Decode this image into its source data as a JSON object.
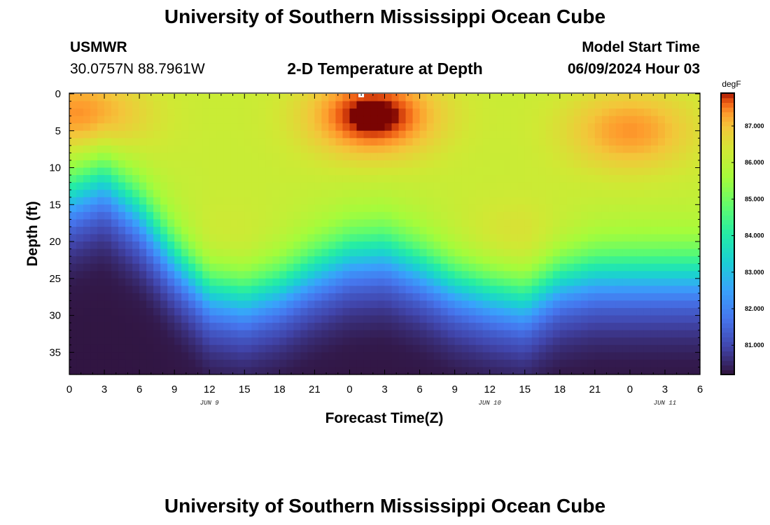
{
  "header": {
    "title": "University of Southern Mississippi Ocean Cube",
    "station": "USMWR",
    "coords": "30.0757N  88.7961W",
    "subtitle": "2-D Temperature at Depth",
    "model_label": "Model Start Time",
    "model_time": "06/09/2024 Hour 03"
  },
  "footer": {
    "title": "University of Southern Mississippi Ocean Cube"
  },
  "chart_data": {
    "type": "heatmap",
    "title": "2-D Temperature at Depth",
    "xlabel": "Forecast Time(Z)",
    "ylabel": "Depth (ft)",
    "x_range": [
      0,
      54
    ],
    "y_range": [
      0,
      38
    ],
    "x_ticks": [
      0,
      3,
      6,
      9,
      12,
      15,
      18,
      21,
      24,
      27,
      30,
      33,
      36,
      39,
      42,
      45,
      48,
      51,
      54
    ],
    "x_tick_labels": [
      "0",
      "3",
      "6",
      "9",
      "12",
      "15",
      "18",
      "21",
      "0",
      "3",
      "6",
      "9",
      "12",
      "15",
      "18",
      "21",
      "0",
      "3",
      "6"
    ],
    "y_ticks": [
      0,
      5,
      10,
      15,
      20,
      25,
      30,
      35
    ],
    "y_tick_labels": [
      "0",
      "5",
      "10",
      "15",
      "20",
      "25",
      "30",
      "35"
    ],
    "date_labels": [
      {
        "x": 12,
        "text": "JUN 9"
      },
      {
        "x": 36,
        "text": "JUN 10"
      },
      {
        "x": 51,
        "text": "JUN 11"
      }
    ],
    "colorbar": {
      "unit": "degF",
      "range": [
        80.2,
        87.9
      ],
      "ticks": [
        81,
        82,
        83,
        84,
        85,
        86,
        87
      ],
      "tick_labels": [
        "81.000",
        "82.000",
        "83.000",
        "84.000",
        "85.000",
        "86.000",
        "87.000"
      ]
    },
    "thermocline_depth_ft": {
      "hours": [
        0,
        3,
        6,
        9,
        12,
        15,
        18,
        21,
        24,
        27,
        30,
        33,
        36,
        39,
        42,
        45,
        48,
        51,
        54
      ],
      "depths": [
        14,
        12,
        16,
        22,
        27,
        28,
        26.5,
        24,
        22,
        21.5,
        23.5,
        26,
        27.5,
        28.5,
        25.5,
        24.5,
        24.5,
        24.5,
        24.5
      ]
    },
    "warm_core_centers": [
      {
        "hour": 1,
        "depth_ft": 3,
        "degF": 87.3
      },
      {
        "hour": 26,
        "depth_ft": 3,
        "degF": 87.8
      },
      {
        "hour": 48,
        "depth_ft": 5,
        "degF": 87.2
      },
      {
        "hour": 13,
        "depth_ft": 21,
        "degF": 86.5
      },
      {
        "hour": 38,
        "depth_ft": 20,
        "degF": 86.6
      }
    ],
    "surface_temp_degF": 86.2,
    "bottom_temp_degF": 80.5
  }
}
